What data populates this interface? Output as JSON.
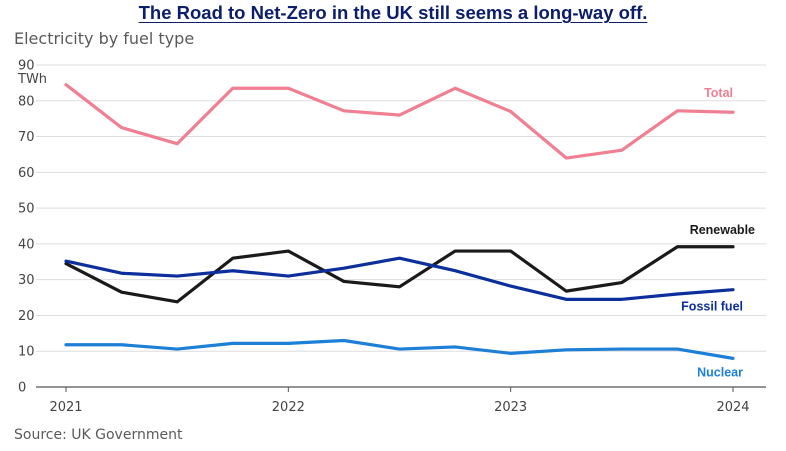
{
  "headline": "The Road to Net-Zero in the UK still seems a long-way off.",
  "subtitle": "Electricity by fuel type",
  "source": "Source: UK Government",
  "chart_data": {
    "type": "line",
    "title": "Electricity by fuel type",
    "ylabel": "TWh",
    "xlabel": "",
    "ylim": [
      0,
      90
    ],
    "xlim": [
      2021,
      2024
    ],
    "yticks": [
      0,
      10,
      20,
      30,
      40,
      50,
      60,
      70,
      80,
      90
    ],
    "xticks": [
      2021,
      2022,
      2023,
      2024
    ],
    "xtick_labels": [
      "2021",
      "2022",
      "2023",
      "2024"
    ],
    "grid": true,
    "x": [
      2021,
      2021.25,
      2021.5,
      2021.75,
      2022,
      2022.25,
      2022.5,
      2022.75,
      2023,
      2023.25,
      2023.5,
      2023.75,
      2024
    ],
    "series": [
      {
        "name": "Total",
        "color": "#f07f91",
        "values": [
          84.5,
          72.5,
          68,
          83.5,
          83.5,
          77.2,
          76,
          83.5,
          77,
          64,
          66.2,
          77.2,
          76.8
        ]
      },
      {
        "name": "Renewable",
        "color": "#1a1a1a",
        "values": [
          34.5,
          26.5,
          23.8,
          36,
          38,
          29.5,
          28,
          38,
          38,
          26.8,
          29.2,
          39.2,
          39.2
        ]
      },
      {
        "name": "Fossil fuel",
        "color": "#0c2f9c",
        "values": [
          35.2,
          31.8,
          31,
          32.5,
          31,
          33.2,
          36,
          32.5,
          28.2,
          24.5,
          24.5,
          26,
          27.2
        ]
      },
      {
        "name": "Nuclear",
        "color": "#1e7fd6",
        "values": [
          11.8,
          11.8,
          10.6,
          12.2,
          12.2,
          13,
          10.6,
          11.2,
          9.4,
          10.4,
          10.6,
          10.6,
          8
        ]
      }
    ]
  }
}
